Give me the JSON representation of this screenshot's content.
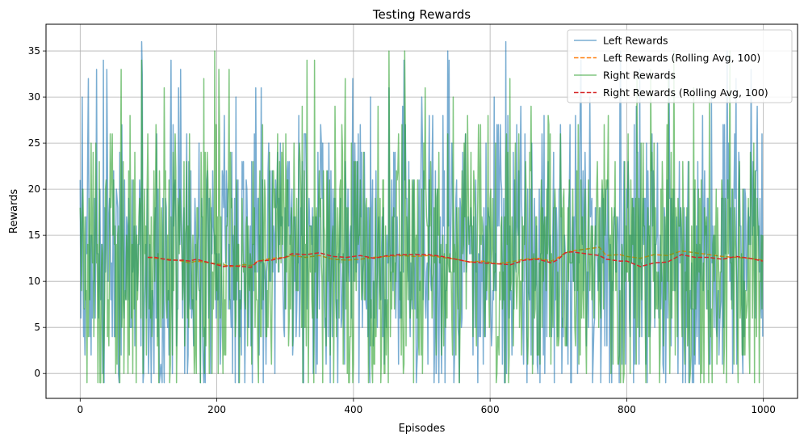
{
  "chart_data": {
    "type": "line",
    "title": "Testing Rewards",
    "xlabel": "Episodes",
    "ylabel": "Rewards",
    "xlim": [
      -50,
      1050
    ],
    "ylim": [
      -2.7,
      37.9
    ],
    "xticks": [
      0,
      200,
      400,
      600,
      800,
      1000
    ],
    "yticks": [
      0,
      5,
      10,
      15,
      20,
      25,
      30,
      35
    ],
    "grid": true,
    "legend_position": "top-right",
    "series": [
      {
        "name": "Left Rewards",
        "style": "solid",
        "color": "#1f77b4",
        "alpha": 0.6,
        "raw": true,
        "n": 1000,
        "min": -1,
        "max": 36,
        "mean": 12.6
      },
      {
        "name": "Left Rewards (Rolling Avg, 100)",
        "style": "dashed",
        "color": "#ff7f0e",
        "alpha": 1.0,
        "x": [
          99,
          110,
          130,
          150,
          160,
          170,
          190,
          210,
          220,
          240,
          250,
          260,
          280,
          300,
          310,
          330,
          350,
          370,
          390,
          410,
          430,
          450,
          470,
          490,
          510,
          530,
          550,
          570,
          590,
          610,
          630,
          650,
          670,
          690,
          700,
          710,
          720,
          740,
          760,
          770,
          790,
          800,
          820,
          840,
          860,
          880,
          900,
          920,
          940,
          960,
          980,
          999
        ],
        "y": [
          12.6,
          12.5,
          12.4,
          12.2,
          12.0,
          12.2,
          12.0,
          11.8,
          11.6,
          11.8,
          11.7,
          12.2,
          12.5,
          12.6,
          12.8,
          12.6,
          12.8,
          12.4,
          12.3,
          12.4,
          12.6,
          12.7,
          12.8,
          12.7,
          12.8,
          12.6,
          12.4,
          12.1,
          12.2,
          11.9,
          12.1,
          12.4,
          12.5,
          12.2,
          12.6,
          13.1,
          13.3,
          13.5,
          13.7,
          12.8,
          12.9,
          12.7,
          12.5,
          12.9,
          12.8,
          13.3,
          13.1,
          12.9,
          12.7,
          12.6,
          12.5,
          12.3
        ]
      },
      {
        "name": "Right Rewards",
        "style": "solid",
        "color": "#2ca02c",
        "alpha": 0.6,
        "raw": true,
        "n": 1000,
        "min": -1,
        "max": 35,
        "mean": 12.4
      },
      {
        "name": "Right Rewards (Rolling Avg, 100)",
        "style": "dashed",
        "color": "#d62728",
        "alpha": 1.0,
        "x": [
          99,
          110,
          130,
          150,
          160,
          170,
          190,
          210,
          220,
          240,
          250,
          260,
          280,
          300,
          310,
          330,
          350,
          370,
          390,
          410,
          430,
          450,
          470,
          490,
          510,
          530,
          550,
          570,
          590,
          610,
          630,
          650,
          670,
          690,
          700,
          710,
          720,
          740,
          760,
          770,
          790,
          800,
          820,
          840,
          860,
          880,
          900,
          920,
          940,
          960,
          980,
          999
        ],
        "y": [
          12.6,
          12.6,
          12.3,
          12.3,
          12.2,
          12.4,
          12.0,
          11.6,
          11.7,
          11.6,
          11.5,
          12.2,
          12.3,
          12.6,
          13.0,
          12.9,
          13.1,
          12.7,
          12.6,
          12.8,
          12.5,
          12.8,
          12.9,
          12.9,
          12.9,
          12.7,
          12.4,
          12.1,
          12.0,
          11.9,
          11.8,
          12.3,
          12.4,
          12.0,
          12.4,
          13.1,
          13.2,
          13.0,
          12.8,
          12.4,
          12.2,
          12.2,
          11.6,
          12.0,
          12.1,
          12.9,
          12.6,
          12.6,
          12.4,
          12.7,
          12.5,
          12.2
        ]
      }
    ]
  }
}
